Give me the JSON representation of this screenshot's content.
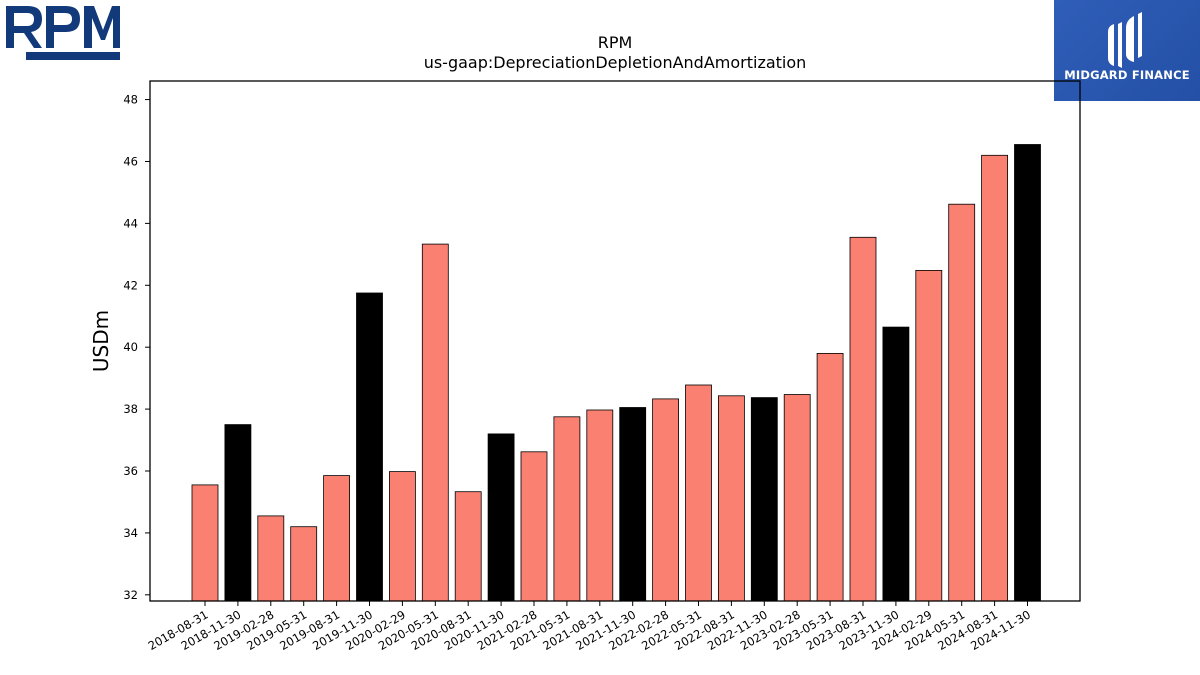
{
  "brand": {
    "logo_text": "RPM",
    "color": "#123a7a"
  },
  "watermark": {
    "text": "MIDGARD FINANCE",
    "bg": "#2b58b0"
  },
  "colors": {
    "normal": "#fa8072",
    "highlight": "#000000",
    "edge": "#000000"
  },
  "chart_data": {
    "type": "bar",
    "title": "RPM",
    "subtitle": "us-gaap:DepreciationDepletionAndAmortization",
    "xlabel": "",
    "ylabel": "USDm",
    "ylim": [
      31.8,
      48.6
    ],
    "yticks": [
      "32",
      "34",
      "36",
      "38",
      "40",
      "42",
      "44",
      "46",
      "48"
    ],
    "grid": false,
    "categories": [
      "2018-08-31",
      "2018-11-30",
      "2019-02-28",
      "2019-05-31",
      "2019-08-31",
      "2019-11-30",
      "2020-02-29",
      "2020-05-31",
      "2020-08-31",
      "2020-11-30",
      "2021-02-28",
      "2021-05-31",
      "2021-08-31",
      "2021-11-30",
      "2022-02-28",
      "2022-05-31",
      "2022-08-31",
      "2022-11-30",
      "2023-02-28",
      "2023-05-31",
      "2023-08-31",
      "2023-11-30",
      "2024-02-29",
      "2024-05-31",
      "2024-08-31",
      "2024-11-30"
    ],
    "values": [
      35.55,
      37.5,
      34.55,
      34.2,
      35.85,
      41.75,
      35.98,
      43.33,
      35.33,
      37.2,
      36.62,
      37.75,
      37.97,
      38.05,
      38.33,
      38.78,
      38.43,
      38.37,
      38.47,
      39.8,
      43.55,
      40.65,
      42.48,
      44.62,
      46.2,
      46.55
    ],
    "highlight": [
      false,
      true,
      false,
      false,
      false,
      true,
      false,
      false,
      false,
      true,
      false,
      false,
      false,
      true,
      false,
      false,
      false,
      true,
      false,
      false,
      false,
      true,
      false,
      false,
      false,
      true
    ]
  }
}
